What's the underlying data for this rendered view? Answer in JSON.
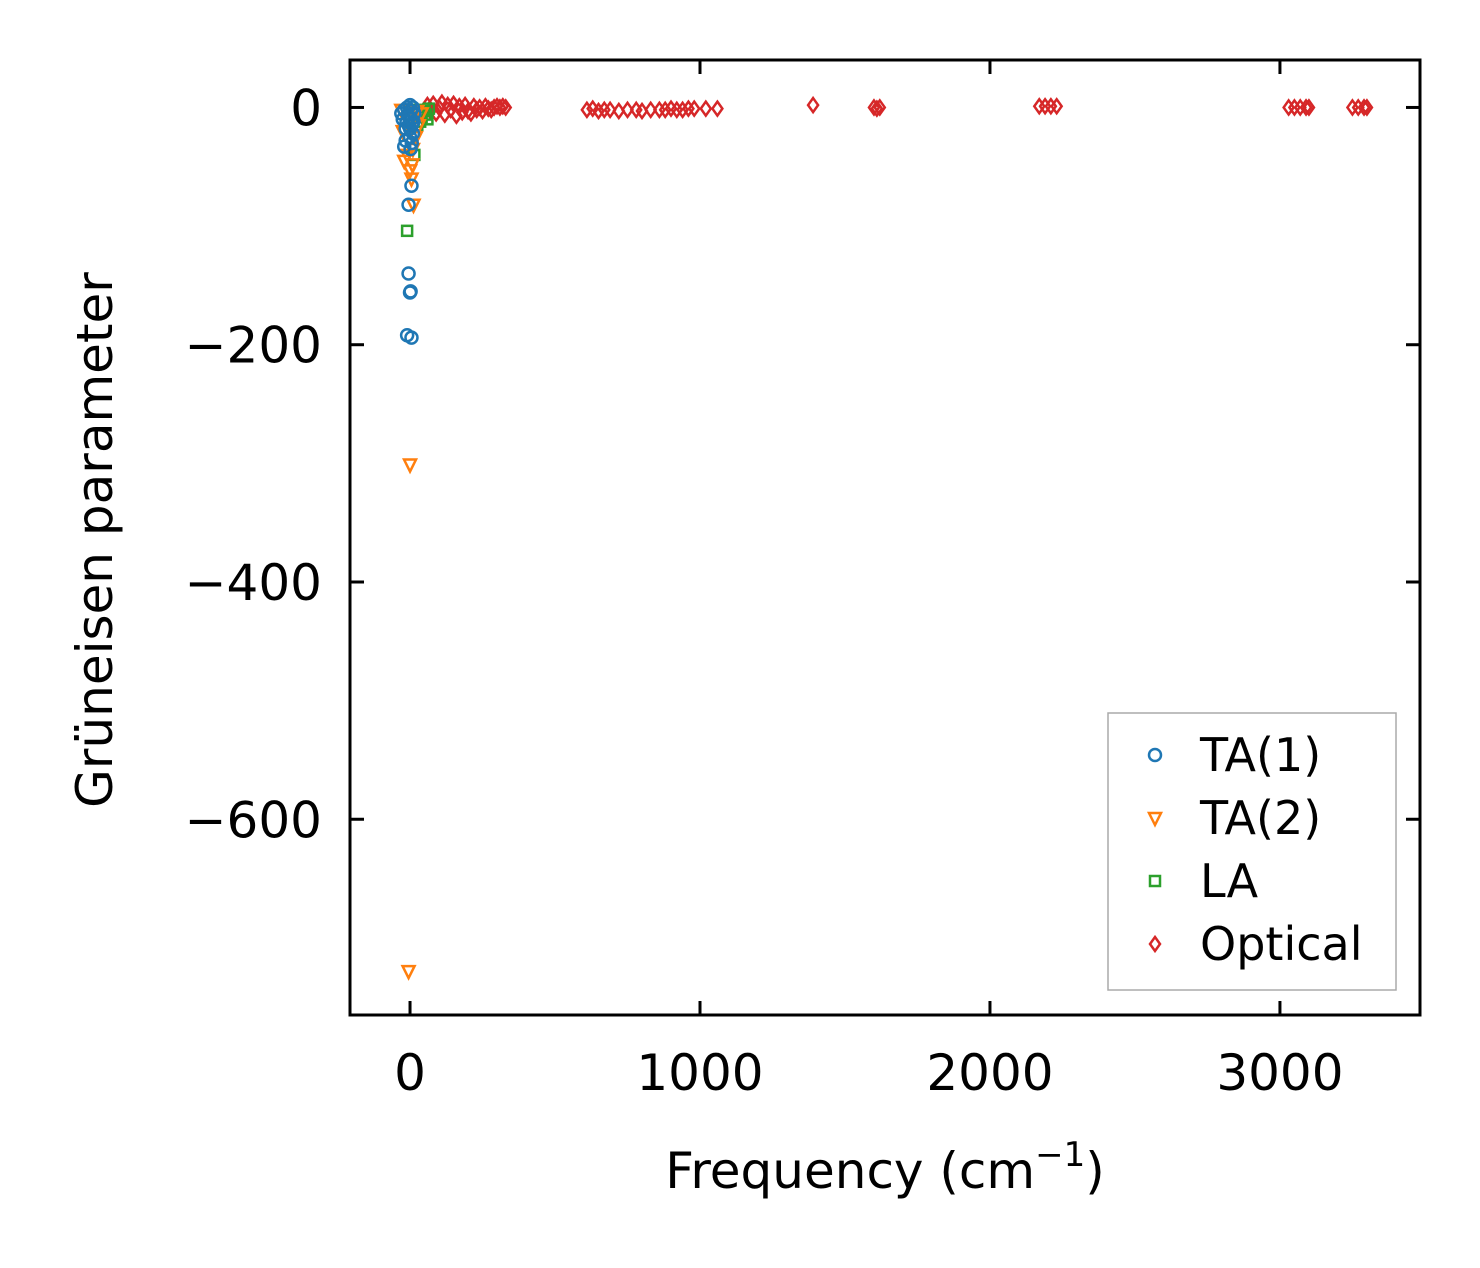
{
  "chart_data": {
    "type": "scatter",
    "title": "",
    "xlabel": "Frequency (cm",
    "xlabel_sup": "−1",
    "xlabel_suffix": ")",
    "ylabel": "Grüneisen parameter",
    "xlim": [
      -207,
      3483
    ],
    "ylim": [
      -765,
      40
    ],
    "xticks": [
      0,
      1000,
      2000,
      3000
    ],
    "xtick_labels": [
      "0",
      "1000",
      "2000",
      "3000"
    ],
    "yticks": [
      0,
      -200,
      -400,
      -600
    ],
    "ytick_labels": [
      "0",
      "−200",
      "−400",
      "−600"
    ],
    "grid": false,
    "legend_position": "bottom-right",
    "series": [
      {
        "name": "TA(1)",
        "marker": "circle",
        "color": "#1f77b4",
        "points": [
          [
            5,
            -66
          ],
          [
            -5,
            -82
          ],
          [
            -5,
            -140
          ],
          [
            0,
            -156
          ],
          [
            2,
            -155
          ],
          [
            -10,
            -192
          ],
          [
            5,
            -194
          ],
          [
            -20,
            -33
          ],
          [
            -15,
            -28
          ],
          [
            0,
            -25
          ],
          [
            10,
            -22
          ],
          [
            -25,
            -10
          ],
          [
            -30,
            -5
          ],
          [
            -20,
            -2
          ],
          [
            -10,
            0
          ],
          [
            0,
            2
          ],
          [
            10,
            0
          ],
          [
            15,
            -5
          ],
          [
            5,
            -10
          ],
          [
            -5,
            -15
          ],
          [
            -15,
            -18
          ],
          [
            0,
            -18
          ],
          [
            8,
            -14
          ],
          [
            -8,
            -6
          ],
          [
            3,
            -3
          ],
          [
            -3,
            -8
          ],
          [
            12,
            -12
          ],
          [
            -12,
            -12
          ],
          [
            6,
            -30
          ],
          [
            2,
            -35
          ]
        ]
      },
      {
        "name": "TA(2)",
        "marker": "triangle-down",
        "color": "#ff7f0e",
        "points": [
          [
            0,
            -301
          ],
          [
            -5,
            -728
          ],
          [
            12,
            -82
          ],
          [
            0,
            -53
          ],
          [
            5,
            -60
          ],
          [
            -20,
            -45
          ],
          [
            -10,
            -40
          ],
          [
            10,
            -35
          ],
          [
            20,
            -25
          ],
          [
            30,
            -15
          ],
          [
            -25,
            -20
          ],
          [
            15,
            -10
          ],
          [
            25,
            -3
          ],
          [
            -30,
            -2
          ],
          [
            40,
            -5
          ],
          [
            8,
            -48
          ]
        ]
      },
      {
        "name": "LA",
        "marker": "square",
        "color": "#2ca02c",
        "points": [
          [
            -10,
            -104
          ],
          [
            15,
            -40
          ],
          [
            20,
            -5
          ],
          [
            30,
            -2
          ],
          [
            40,
            -8
          ],
          [
            50,
            -3
          ],
          [
            60,
            -10
          ],
          [
            65,
            -1
          ],
          [
            35,
            -12
          ],
          [
            25,
            -15
          ],
          [
            55,
            -6
          ]
        ]
      },
      {
        "name": "Optical",
        "marker": "diamond",
        "color": "#d62728",
        "points": [
          [
            60,
            2
          ],
          [
            70,
            -3
          ],
          [
            80,
            3
          ],
          [
            90,
            -5
          ],
          [
            100,
            0
          ],
          [
            110,
            4
          ],
          [
            120,
            -6
          ],
          [
            130,
            2
          ],
          [
            140,
            -2
          ],
          [
            150,
            3
          ],
          [
            160,
            -7
          ],
          [
            170,
            1
          ],
          [
            180,
            -4
          ],
          [
            190,
            2
          ],
          [
            200,
            -3
          ],
          [
            210,
            -5
          ],
          [
            220,
            1
          ],
          [
            230,
            -2
          ],
          [
            240,
            0
          ],
          [
            250,
            -3
          ],
          [
            260,
            1
          ],
          [
            270,
            -1
          ],
          [
            280,
            -2
          ],
          [
            290,
            0
          ],
          [
            300,
            1
          ],
          [
            310,
            0
          ],
          [
            320,
            1
          ],
          [
            330,
            0
          ],
          [
            610,
            -2
          ],
          [
            630,
            -1
          ],
          [
            650,
            -3
          ],
          [
            670,
            -2
          ],
          [
            690,
            -2
          ],
          [
            720,
            -3
          ],
          [
            750,
            -2
          ],
          [
            780,
            -2
          ],
          [
            800,
            -3
          ],
          [
            830,
            -2
          ],
          [
            860,
            -2
          ],
          [
            880,
            -2
          ],
          [
            900,
            -1
          ],
          [
            920,
            -2
          ],
          [
            940,
            -2
          ],
          [
            960,
            -1
          ],
          [
            980,
            -1
          ],
          [
            1020,
            -1
          ],
          [
            1060,
            -1
          ],
          [
            1390,
            2
          ],
          [
            1600,
            0
          ],
          [
            1610,
            -1
          ],
          [
            1620,
            0
          ],
          [
            2170,
            1
          ],
          [
            2190,
            1
          ],
          [
            2210,
            1
          ],
          [
            2230,
            1
          ],
          [
            3030,
            0
          ],
          [
            3050,
            0
          ],
          [
            3070,
            0
          ],
          [
            3090,
            0
          ],
          [
            3100,
            0
          ],
          [
            3250,
            0
          ],
          [
            3270,
            0
          ],
          [
            3290,
            0
          ],
          [
            3300,
            0
          ]
        ]
      }
    ]
  }
}
